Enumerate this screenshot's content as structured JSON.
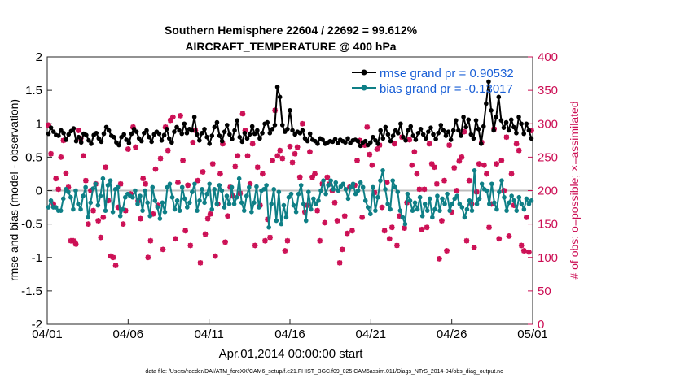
{
  "chart_data": {
    "type": "line",
    "title": "Southern Hemisphere 22604 / 22692 = 99.612%",
    "subtitle": "AIRCRAFT_TEMPERATURE @ 400 hPa",
    "xlabel": "Apr.01,2014 00:00:00 start",
    "ylabel_left": "rmse and bias (model - observation)",
    "ylabel_right": "# of obs: o=possible; ×=assimilated",
    "x_ticks": [
      "04/01",
      "04/06",
      "04/11",
      "04/16",
      "04/21",
      "04/26",
      "05/01"
    ],
    "x_range_days": [
      0,
      30
    ],
    "ylim_left": [
      -2,
      2
    ],
    "yticks_left": [
      "-2",
      "-1.5",
      "-1",
      "-0.5",
      "0",
      "0.5",
      "1",
      "1.5",
      "2"
    ],
    "ylim_right": [
      0,
      400
    ],
    "yticks_right": [
      "0",
      "50",
      "100",
      "150",
      "200",
      "250",
      "300",
      "350",
      "400"
    ],
    "legend_position": "top-right",
    "grid": false,
    "footnote": "data file: /Users/raeder/DAI/ATM_forcXX/CAM6_setup/f.e21.FHIST_BGC.f09_025.CAM6assim.011/Diags_NTrS_2014-04/obs_diag_output.nc",
    "colors": {
      "rmse": "#000000",
      "bias": "#0e7f86",
      "obs": "#cc0e54",
      "zero_line": "#bdbdbd",
      "legend_text": "#1a5fd6"
    },
    "series": [
      {
        "name": "rmse grand pr = 0.90532",
        "axis": "left",
        "values": [
          0.85,
          0.94,
          0.88,
          0.83,
          0.82,
          0.9,
          0.86,
          0.76,
          0.84,
          0.89,
          0.93,
          0.74,
          0.8,
          0.72,
          0.85,
          0.83,
          0.75,
          0.7,
          0.83,
          0.86,
          0.78,
          0.73,
          0.85,
          0.95,
          0.9,
          0.82,
          0.8,
          0.72,
          0.68,
          0.8,
          0.84,
          0.76,
          0.71,
          0.85,
          0.92,
          0.88,
          0.78,
          0.74,
          0.86,
          0.9,
          0.8,
          0.73,
          0.84,
          0.88,
          0.85,
          0.75,
          0.83,
          0.92,
          0.78,
          0.72,
          0.88,
          0.95,
          0.9,
          0.85,
          1.0,
          0.86,
          0.92,
          0.9,
          1.1,
          0.84,
          0.75,
          0.86,
          0.92,
          0.8,
          0.7,
          0.82,
          0.95,
          1.02,
          0.82,
          0.74,
          0.88,
          0.98,
          0.84,
          0.77,
          0.9,
          1.05,
          0.8,
          0.73,
          0.86,
          0.78,
          0.84,
          0.96,
          0.85,
          0.9,
          0.78,
          0.86,
          1.0,
          1.02,
          0.86,
          0.92,
          0.98,
          1.55,
          1.4,
          0.98,
          0.88,
          0.92,
          1.2,
          0.9,
          0.84,
          0.88,
          0.86,
          0.9,
          0.78,
          0.74,
          0.85,
          0.76,
          0.74,
          0.7,
          0.78,
          0.76,
          0.7,
          0.72,
          0.74,
          0.73,
          0.77,
          0.71,
          0.76,
          0.74,
          0.72,
          0.78,
          0.71,
          0.75,
          0.76,
          0.74,
          0.67,
          0.72,
          0.74,
          0.68,
          0.72,
          0.8,
          0.75,
          0.7,
          0.9,
          0.78,
          0.95,
          0.84,
          0.74,
          0.82,
          0.9,
          0.86,
          1.0,
          0.8,
          0.75,
          0.9,
          0.96,
          0.82,
          0.76,
          0.86,
          0.92,
          0.84,
          0.78,
          0.88,
          0.94,
          0.84,
          0.77,
          0.86,
          0.98,
          0.9,
          0.82,
          0.88,
          0.76,
          0.9,
          1.05,
          0.9,
          0.82,
          1.1,
          0.95,
          1.06,
          0.84,
          0.78,
          1.05,
          0.92,
          0.7,
          0.96,
          1.3,
          1.63,
          1.2,
          0.9,
          1.1,
          1.4,
          1.05,
          0.94,
          1.02,
          0.9,
          1.06,
          0.95,
          0.86,
          1.1,
          1.0,
          0.85,
          1.0,
          0.9,
          0.78
        ]
      },
      {
        "name": "bias grand pr = -0.13017",
        "axis": "left",
        "values": [
          -0.25,
          -0.15,
          -0.25,
          -0.25,
          -0.3,
          -0.3,
          -0.12,
          0.02,
          -0.02,
          -0.1,
          -0.28,
          0.0,
          -0.2,
          -0.28,
          -0.08,
          0.05,
          -0.4,
          -0.18,
          0.03,
          0.1,
          -0.22,
          -0.08,
          0.18,
          -0.3,
          0.08,
          0.15,
          -0.32,
          0.02,
          0.05,
          -0.38,
          -0.28,
          -0.1,
          -0.05,
          -0.08,
          -0.1,
          0.0,
          -0.2,
          -0.08,
          -0.3,
          0.0,
          -0.18,
          -0.38,
          0.05,
          -0.15,
          -0.25,
          -0.42,
          -0.18,
          -0.32,
          0.05,
          0.1,
          -0.1,
          -0.28,
          -0.15,
          -0.3,
          0.05,
          -0.12,
          -0.25,
          -0.18,
          -0.02,
          0.1,
          -0.3,
          -0.15,
          0.02,
          -0.18,
          -0.05,
          0.1,
          -0.28,
          0.02,
          -0.2,
          0.08,
          0.0,
          -0.25,
          -0.08,
          -0.2,
          0.05,
          -0.2,
          -0.1,
          0.18,
          -0.18,
          -0.3,
          -0.08,
          0.05,
          -0.32,
          -0.18,
          0.06,
          -0.25,
          0.0,
          0.02,
          0.08,
          -0.55,
          -0.2,
          0.02,
          -0.45,
          -0.02,
          -0.5,
          -0.22,
          -0.4,
          -0.1,
          -0.05,
          -0.22,
          -0.32,
          -0.05,
          0.08,
          -0.2,
          -0.45,
          -0.02,
          -0.28,
          -0.12,
          -0.2,
          -0.15,
          0.0,
          0.15,
          -0.05,
          0.08,
          0.15,
          0.02,
          0.12,
          0.0,
          0.06,
          0.1,
          0.02,
          -0.12,
          0.05,
          0.1,
          -0.05,
          0.0,
          0.12,
          0.05,
          -0.15,
          -0.25,
          -0.35,
          0.05,
          -0.3,
          -0.1,
          0.15,
          0.3,
          0.02,
          -0.2,
          -0.28,
          0.15,
          0.05,
          -0.02,
          -0.3,
          -0.4,
          -0.5,
          -0.05,
          -0.15,
          -0.3,
          -0.18,
          -0.28,
          -0.1,
          -0.38,
          -0.2,
          -0.3,
          -0.12,
          -0.4,
          -0.28,
          -0.08,
          -0.3,
          -0.12,
          -0.2,
          -0.05,
          -0.3,
          -0.2,
          -0.12,
          -0.08,
          -0.2,
          -0.25,
          -0.4,
          -0.28,
          -0.15,
          -0.3,
          0.3,
          -0.2,
          -0.12,
          0.1,
          0.02,
          0.0,
          -0.2,
          0.1,
          -0.18,
          -0.28,
          -0.02,
          0.15,
          -0.1,
          -0.3,
          -0.18,
          -0.08,
          -0.15,
          -0.3,
          -0.1,
          -0.2,
          -0.28,
          -0.12,
          -0.2,
          -0.15
        ]
      },
      {
        "name": "obs",
        "axis": "right",
        "values": [
          298,
          255,
          180,
          218,
          202,
          250,
          275,
          226,
          205,
          125,
          125,
          120,
          290,
          278,
          252,
          215,
          150,
          200,
          170,
          210,
          155,
          130,
          160,
          235,
          185,
          102,
          100,
          88,
          175,
          210,
          150,
          170,
          262,
          195,
          295,
          265,
          185,
          158,
          218,
          210,
          100,
          125,
          165,
          232,
          178,
          248,
          112,
          295,
          260,
          305,
          310,
          128,
          212,
          312,
          245,
          140,
          208,
          118,
          272,
          290,
          215,
          92,
          228,
          135,
          158,
          165,
          240,
          102,
          180,
          225,
          270,
          123,
          162,
          205,
          192,
          236,
          252,
          196,
          315,
          290,
          252,
          210,
          270,
          118,
          235,
          178,
          225,
          125,
          157,
          130,
          245,
          320,
          252,
          260,
          248,
          110,
          125,
          266,
          242,
          255,
          265,
          220,
          300,
          168,
          178,
          258,
          220,
          225,
          170,
          125,
          210,
          152,
          220,
          210,
          200,
          182,
          155,
          92,
          112,
          162,
          136,
          205,
          140,
          208,
          245,
          275,
          160,
          268,
          295,
          254,
          238,
          197,
          262,
          268,
          175,
          140,
          212,
          128,
          145,
          270,
          118,
          162,
          280,
          144,
          182,
          276,
          238,
          258,
          225,
          202,
          142,
          202,
          145,
          270,
          240,
          235,
          210,
          98,
          155,
          215,
          110,
          268,
          168,
          234,
          200,
          244,
          250,
          288,
          125,
          215,
          180,
          115,
          198,
          240,
          272,
          238,
          225,
          145,
          180,
          292,
          240,
          128,
          245,
          200,
          280,
          132,
          225,
          178,
          270,
          260,
          118,
          110,
          160,
          108,
          290
        ]
      }
    ]
  },
  "legend": {
    "rmse_label": "rmse grand pr = 0.90532",
    "bias_label": "bias grand pr = -0.13017"
  }
}
